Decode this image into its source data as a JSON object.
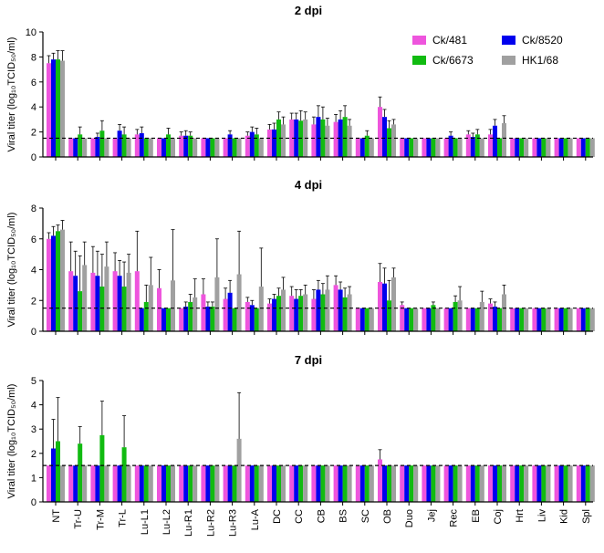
{
  "legend": [
    {
      "name": "Ck/481",
      "color": "#ee55dd"
    },
    {
      "name": "Ck/8520",
      "color": "#0000ee"
    },
    {
      "name": "Ck/6673",
      "color": "#11bb11"
    },
    {
      "name": "HK1/68",
      "color": "#a0a0a0"
    }
  ],
  "chart_data": [
    {
      "type": "bar",
      "title": "2 dpi",
      "ylabel": "Viral titer (log₁₀TCID₅₀/ml)",
      "ylim": [
        0,
        10
      ],
      "yticks": [
        0,
        2,
        4,
        6,
        8,
        10
      ],
      "detection_limit": 1.5,
      "show_xlabels": false,
      "categories": [
        "NT",
        "Tr-U",
        "Tr-M",
        "Tr-L",
        "Lu-L1",
        "Lu-L2",
        "Lu-R1",
        "Lu-R2",
        "Lu-R3",
        "Lu-A",
        "DC",
        "CC",
        "CB",
        "BS",
        "SC",
        "OB",
        "Duo",
        "Jej",
        "Rec",
        "EB",
        "Coj",
        "Hrt",
        "Liv",
        "Kid",
        "Spl"
      ],
      "series": [
        {
          "name": "Ck/481",
          "color": "#ee55dd",
          "values": [
            7.5,
            1.5,
            1.5,
            1.5,
            1.8,
            1.5,
            1.7,
            1.5,
            1.5,
            1.7,
            2.2,
            3.0,
            2.6,
            2.8,
            1.5,
            4.0,
            1.5,
            1.5,
            1.5,
            1.8,
            1.8,
            1.5,
            1.5,
            1.5,
            1.5
          ],
          "errors": [
            0.6,
            0,
            0,
            0,
            0.4,
            0,
            0.3,
            0,
            0,
            0.3,
            0.4,
            0.5,
            0.6,
            0.6,
            0,
            0.8,
            0,
            0,
            0,
            0.3,
            0.4,
            0,
            0,
            0,
            0
          ]
        },
        {
          "name": "Ck/8520",
          "color": "#0000ee",
          "values": [
            7.8,
            1.5,
            1.6,
            2.1,
            1.9,
            1.5,
            1.7,
            1.5,
            1.8,
            2.0,
            2.2,
            3.0,
            3.2,
            3.0,
            1.5,
            3.2,
            1.5,
            1.5,
            1.7,
            1.6,
            2.5,
            1.5,
            1.5,
            1.5,
            1.5
          ],
          "errors": [
            0.5,
            0,
            0.3,
            0.5,
            0.5,
            0,
            0.4,
            0,
            0.3,
            0.4,
            0.5,
            0.5,
            0.9,
            0.7,
            0,
            0.6,
            0,
            0,
            0.3,
            0.3,
            0.5,
            0,
            0,
            0,
            0
          ]
        },
        {
          "name": "Ck/6673",
          "color": "#11bb11",
          "values": [
            7.8,
            1.8,
            2.1,
            1.8,
            1.5,
            1.8,
            1.7,
            1.5,
            1.5,
            1.8,
            3.0,
            2.9,
            3.0,
            3.2,
            1.7,
            2.3,
            1.5,
            1.5,
            1.5,
            1.8,
            1.5,
            1.5,
            1.5,
            1.5,
            1.5
          ],
          "errors": [
            0.7,
            0.6,
            0.8,
            0.6,
            0,
            0.5,
            0.3,
            0,
            0,
            0.5,
            0.6,
            0.8,
            1.0,
            0.9,
            0.4,
            0.6,
            0,
            0,
            0,
            0.4,
            0,
            0,
            0,
            0,
            0
          ]
        },
        {
          "name": "HK1/68",
          "color": "#a0a0a0",
          "values": [
            7.7,
            1.5,
            1.5,
            1.5,
            1.5,
            1.5,
            1.5,
            1.5,
            1.5,
            1.5,
            2.6,
            3.0,
            2.5,
            2.5,
            1.5,
            2.6,
            1.5,
            1.5,
            1.5,
            1.5,
            2.7,
            1.5,
            1.5,
            1.5,
            1.5
          ],
          "errors": [
            0.8,
            0,
            0,
            0,
            0,
            0,
            0,
            0,
            0,
            0,
            0.6,
            0.6,
            0.6,
            0.5,
            0,
            0.4,
            0,
            0,
            0,
            0,
            0.6,
            0,
            0,
            0,
            0
          ]
        }
      ]
    },
    {
      "type": "bar",
      "title": "4 dpi",
      "ylabel": "Viral titer (log₁₀TCID₅₀/ml)",
      "ylim": [
        0,
        8
      ],
      "yticks": [
        0,
        2,
        4,
        6,
        8
      ],
      "detection_limit": 1.5,
      "show_xlabels": false,
      "categories": [
        "NT",
        "Tr-U",
        "Tr-M",
        "Tr-L",
        "Lu-L1",
        "Lu-L2",
        "Lu-R1",
        "Lu-R2",
        "Lu-R3",
        "Lu-A",
        "DC",
        "CC",
        "CB",
        "BS",
        "SC",
        "OB",
        "Duo",
        "Jej",
        "Rec",
        "EB",
        "Coj",
        "Hrt",
        "Liv",
        "Kid",
        "Spl"
      ],
      "series": [
        {
          "name": "Ck/481",
          "color": "#ee55dd",
          "values": [
            6.0,
            3.9,
            3.8,
            3.9,
            3.9,
            2.8,
            1.5,
            2.4,
            2.1,
            1.9,
            1.8,
            2.3,
            2.1,
            3.0,
            1.5,
            3.2,
            1.7,
            1.5,
            1.5,
            1.5,
            1.8,
            1.5,
            1.5,
            1.5,
            1.5
          ],
          "errors": [
            0.4,
            1.9,
            1.7,
            1.2,
            2.6,
            1.2,
            0,
            1.0,
            0.7,
            0.3,
            0.3,
            0.6,
            0.6,
            0.6,
            0,
            1.2,
            0.2,
            0,
            0,
            0,
            0.3,
            0,
            0,
            0,
            0
          ]
        },
        {
          "name": "Ck/8520",
          "color": "#0000ee",
          "values": [
            6.2,
            3.6,
            3.6,
            3.6,
            1.5,
            1.5,
            1.6,
            1.6,
            2.5,
            1.7,
            2.1,
            2.1,
            2.7,
            2.7,
            1.5,
            3.1,
            1.5,
            1.5,
            1.5,
            1.5,
            1.6,
            1.5,
            1.5,
            1.5,
            1.5
          ],
          "errors": [
            0.6,
            1.6,
            1.6,
            1.0,
            0,
            0,
            0.3,
            0.3,
            0.8,
            0.3,
            0.3,
            0.6,
            0.6,
            0.5,
            0,
            1.0,
            0,
            0,
            0,
            0,
            0.3,
            0,
            0,
            0,
            0
          ]
        },
        {
          "name": "Ck/6673",
          "color": "#11bb11",
          "values": [
            6.5,
            2.6,
            2.9,
            2.9,
            1.9,
            1.5,
            1.9,
            1.6,
            1.5,
            1.5,
            2.3,
            2.3,
            2.4,
            2.2,
            1.5,
            2.0,
            1.5,
            1.7,
            1.9,
            1.5,
            1.5,
            1.5,
            1.5,
            1.5,
            1.5
          ],
          "errors": [
            0.4,
            2.3,
            2.1,
            1.6,
            1.1,
            0,
            0.5,
            0.3,
            0,
            0,
            0.5,
            0.4,
            0.7,
            0.6,
            0,
            1.3,
            0,
            0.2,
            0.4,
            0,
            0,
            0,
            0,
            0,
            0
          ]
        },
        {
          "name": "HK1/68",
          "color": "#a0a0a0",
          "values": [
            6.6,
            4.3,
            4.2,
            3.8,
            3.0,
            3.3,
            2.2,
            3.5,
            3.7,
            2.9,
            2.7,
            2.4,
            2.7,
            2.4,
            1.5,
            3.5,
            1.5,
            1.5,
            2.0,
            1.9,
            2.4,
            1.5,
            1.5,
            1.5,
            1.5
          ],
          "errors": [
            0.6,
            1.5,
            1.6,
            1.2,
            1.8,
            3.3,
            1.2,
            2.5,
            2.8,
            2.5,
            0.8,
            0.6,
            0.9,
            0.5,
            0,
            0.6,
            0,
            0,
            0.9,
            0.7,
            0.6,
            0,
            0,
            0,
            0
          ]
        }
      ]
    },
    {
      "type": "bar",
      "title": "7 dpi",
      "ylabel": "Viral titer (log₁₀TCID₅₀/ml)",
      "ylim": [
        0,
        5
      ],
      "yticks": [
        0,
        1,
        2,
        3,
        4,
        5
      ],
      "detection_limit": 1.5,
      "show_xlabels": true,
      "categories": [
        "NT",
        "Tr-U",
        "Tr-M",
        "Tr-L",
        "Lu-L1",
        "Lu-L2",
        "Lu-R1",
        "Lu-R2",
        "Lu-R3",
        "Lu-A",
        "DC",
        "CC",
        "CB",
        "BS",
        "SC",
        "OB",
        "Duo",
        "Jej",
        "Rec",
        "EB",
        "Coj",
        "Hrt",
        "Liv",
        "Kid",
        "Spl"
      ],
      "series": [
        {
          "name": "Ck/481",
          "color": "#ee55dd",
          "values": [
            1.5,
            1.5,
            1.5,
            1.5,
            1.5,
            1.5,
            1.5,
            1.5,
            1.5,
            1.5,
            1.5,
            1.5,
            1.5,
            1.5,
            1.5,
            1.75,
            1.5,
            1.5,
            1.5,
            1.5,
            1.5,
            1.5,
            1.5,
            1.5,
            1.5
          ],
          "errors": [
            0,
            0,
            0,
            0,
            0,
            0,
            0,
            0,
            0,
            0,
            0,
            0,
            0,
            0,
            0,
            0.4,
            0,
            0,
            0,
            0,
            0,
            0,
            0,
            0,
            0
          ]
        },
        {
          "name": "Ck/8520",
          "color": "#0000ee",
          "values": [
            2.2,
            1.5,
            1.5,
            1.5,
            1.5,
            1.5,
            1.5,
            1.5,
            1.5,
            1.5,
            1.5,
            1.5,
            1.5,
            1.5,
            1.5,
            1.5,
            1.5,
            1.5,
            1.5,
            1.5,
            1.5,
            1.5,
            1.5,
            1.5,
            1.5
          ],
          "errors": [
            1.2,
            0,
            0,
            0,
            0,
            0,
            0,
            0,
            0,
            0,
            0,
            0,
            0,
            0,
            0,
            0,
            0,
            0,
            0,
            0,
            0,
            0,
            0,
            0,
            0
          ]
        },
        {
          "name": "Ck/6673",
          "color": "#11bb11",
          "values": [
            2.5,
            2.4,
            2.75,
            2.25,
            1.5,
            1.5,
            1.5,
            1.5,
            1.5,
            1.5,
            1.5,
            1.5,
            1.5,
            1.5,
            1.5,
            1.5,
            1.5,
            1.5,
            1.5,
            1.5,
            1.5,
            1.5,
            1.5,
            1.5,
            1.5
          ],
          "errors": [
            1.8,
            0.7,
            1.4,
            1.3,
            0,
            0,
            0,
            0,
            0,
            0,
            0,
            0,
            0,
            0,
            0,
            0,
            0,
            0,
            0,
            0,
            0,
            0,
            0,
            0,
            0
          ]
        },
        {
          "name": "HK1/68",
          "color": "#a0a0a0",
          "values": [
            1.5,
            1.5,
            1.5,
            1.5,
            1.5,
            1.5,
            1.5,
            1.5,
            2.6,
            1.5,
            1.5,
            1.5,
            1.5,
            1.5,
            1.5,
            1.5,
            1.5,
            1.5,
            1.5,
            1.5,
            1.5,
            1.5,
            1.5,
            1.5,
            1.5
          ],
          "errors": [
            0,
            0,
            0,
            0,
            0,
            0,
            0,
            0,
            1.9,
            0,
            0,
            0,
            0,
            0,
            0,
            0,
            0,
            0,
            0,
            0,
            0,
            0,
            0,
            0,
            0
          ]
        }
      ]
    }
  ]
}
